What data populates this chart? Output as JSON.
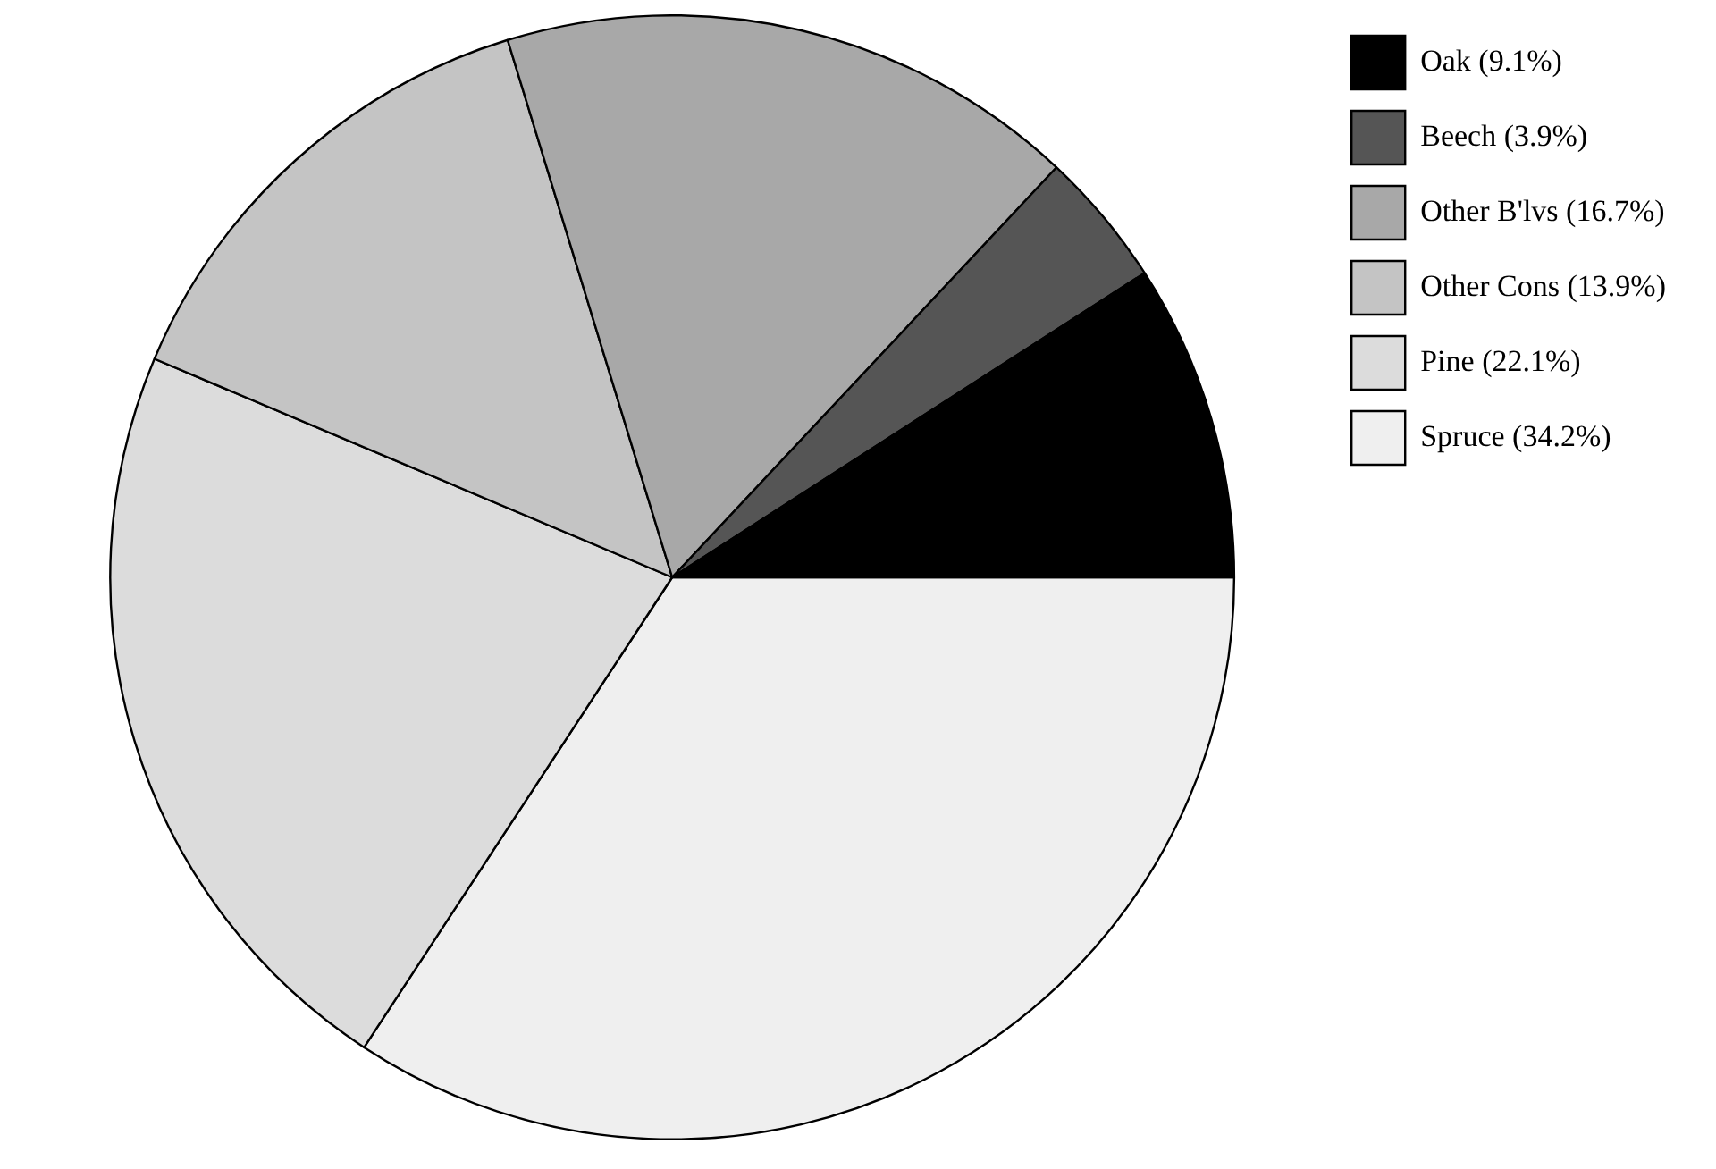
{
  "chart_data": {
    "type": "pie",
    "categories": [
      "Oak (9.1%)",
      "Beech (3.9%)",
      "Other B'lvs (16.7%)",
      "Other Cons (13.9%)",
      "Pine (22.1%)",
      "Spruce (34.2%)"
    ],
    "values": [
      9.1,
      3.9,
      16.7,
      13.9,
      22.1,
      34.2
    ],
    "colors": [
      "#000000",
      "#555555",
      "#a8a8a8",
      "#c4c4c4",
      "#dcdcdc",
      "#efefef"
    ],
    "legend": "top right"
  }
}
